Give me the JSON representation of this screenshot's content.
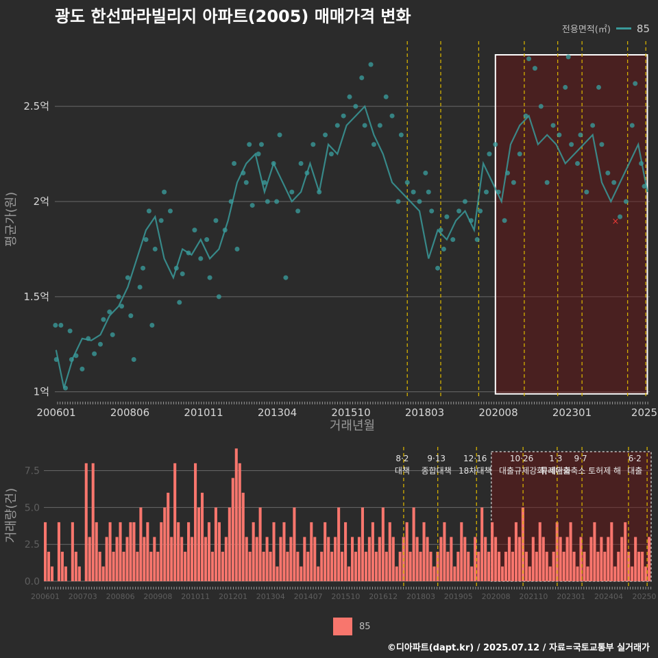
{
  "header": {
    "title": "광도 한선파라빌리지 아파트(2005) 매매가격 변화"
  },
  "legend_top": {
    "title": "전용면적(㎡)",
    "label": "85",
    "color": "#3a9a9a"
  },
  "legend_bottom": {
    "label": "85",
    "color": "#f8766d"
  },
  "footer": {
    "text": "©디아파트(dapt.kr) / 2025.07.12 / 자료=국토교통부 실거래가"
  },
  "chart_data": [
    {
      "type": "line",
      "title": "광도 한선파라빌리지 아파트(2005) 매매가격 변화",
      "xlabel": "거래년월",
      "ylabel": "평균가(원)",
      "x_tick_labels": [
        "200601",
        "200806",
        "201011",
        "201304",
        "201510",
        "201803",
        "202008",
        "202301",
        "2025"
      ],
      "y_tick_labels": [
        "1억",
        "1.5억",
        "2억",
        "2.5억"
      ],
      "y_ticks": [
        1.0,
        1.5,
        2.0,
        2.5
      ],
      "ylim": [
        0.97,
        2.85
      ],
      "xlim": [
        2006.0,
        2025.58
      ],
      "series": [
        {
          "name": "85",
          "color": "#3a9a9a",
          "x": [
            2006.04,
            2006.3,
            2006.6,
            2006.9,
            2007.2,
            2007.5,
            2007.8,
            2008.1,
            2008.4,
            2008.7,
            2009.0,
            2009.3,
            2009.6,
            2009.9,
            2010.2,
            2010.5,
            2010.8,
            2011.1,
            2011.4,
            2011.7,
            2012.0,
            2012.3,
            2012.6,
            2012.9,
            2013.2,
            2013.5,
            2013.8,
            2014.1,
            2014.4,
            2014.7,
            2015.0,
            2015.3,
            2015.6,
            2015.9,
            2016.2,
            2016.5,
            2016.8,
            2017.1,
            2017.4,
            2017.7,
            2018.0,
            2018.3,
            2018.6,
            2018.9,
            2019.2,
            2019.5,
            2019.8,
            2020.1,
            2020.4,
            2020.7,
            2021.0,
            2021.3,
            2021.6,
            2021.9,
            2022.2,
            2022.5,
            2022.8,
            2023.1,
            2023.4,
            2023.7,
            2024.0,
            2024.3,
            2024.6,
            2024.9,
            2025.2,
            2025.5
          ],
          "values": [
            1.22,
            1.02,
            1.18,
            1.28,
            1.27,
            1.3,
            1.4,
            1.45,
            1.55,
            1.7,
            1.85,
            1.92,
            1.7,
            1.6,
            1.75,
            1.72,
            1.8,
            1.7,
            1.75,
            1.9,
            2.1,
            2.2,
            2.25,
            2.05,
            2.2,
            2.1,
            2.0,
            2.05,
            2.2,
            2.05,
            2.3,
            2.25,
            2.4,
            2.45,
            2.5,
            2.35,
            2.25,
            2.1,
            2.05,
            2.0,
            1.95,
            1.7,
            1.85,
            1.8,
            1.9,
            1.95,
            1.85,
            2.2,
            2.1,
            2.0,
            2.3,
            2.4,
            2.45,
            2.3,
            2.35,
            2.3,
            2.2,
            2.25,
            2.3,
            2.35,
            2.1,
            2.0,
            2.1,
            2.2,
            2.3,
            2.05
          ]
        }
      ],
      "scatter_points": [
        [
          2006.02,
          1.35
        ],
        [
          2006.05,
          1.17
        ],
        [
          2006.2,
          1.35
        ],
        [
          2006.35,
          1.02
        ],
        [
          2006.5,
          1.32
        ],
        [
          2006.55,
          1.17
        ],
        [
          2006.7,
          1.19
        ],
        [
          2006.9,
          1.12
        ],
        [
          2007.1,
          1.28
        ],
        [
          2007.3,
          1.2
        ],
        [
          2007.5,
          1.25
        ],
        [
          2007.6,
          1.38
        ],
        [
          2007.8,
          1.42
        ],
        [
          2007.9,
          1.3
        ],
        [
          2008.1,
          1.5
        ],
        [
          2008.2,
          1.45
        ],
        [
          2008.4,
          1.6
        ],
        [
          2008.5,
          1.4
        ],
        [
          2008.6,
          1.17
        ],
        [
          2008.8,
          1.55
        ],
        [
          2008.9,
          1.65
        ],
        [
          2009.0,
          1.8
        ],
        [
          2009.1,
          1.95
        ],
        [
          2009.2,
          1.35
        ],
        [
          2009.3,
          1.75
        ],
        [
          2009.5,
          1.9
        ],
        [
          2009.6,
          2.05
        ],
        [
          2009.8,
          1.95
        ],
        [
          2010.0,
          1.65
        ],
        [
          2010.1,
          1.47
        ],
        [
          2010.2,
          1.62
        ],
        [
          2010.4,
          1.73
        ],
        [
          2010.6,
          1.85
        ],
        [
          2010.8,
          1.7
        ],
        [
          2011.0,
          1.8
        ],
        [
          2011.1,
          1.6
        ],
        [
          2011.3,
          1.9
        ],
        [
          2011.4,
          1.5
        ],
        [
          2011.6,
          1.85
        ],
        [
          2011.8,
          2.0
        ],
        [
          2011.9,
          2.2
        ],
        [
          2012.0,
          1.75
        ],
        [
          2012.2,
          2.15
        ],
        [
          2012.3,
          2.1
        ],
        [
          2012.4,
          2.3
        ],
        [
          2012.5,
          1.98
        ],
        [
          2012.7,
          2.25
        ],
        [
          2012.8,
          2.3
        ],
        [
          2012.9,
          2.1
        ],
        [
          2013.0,
          2.0
        ],
        [
          2013.2,
          2.2
        ],
        [
          2013.3,
          2.0
        ],
        [
          2013.4,
          2.35
        ],
        [
          2013.6,
          1.6
        ],
        [
          2013.8,
          2.05
        ],
        [
          2014.0,
          1.95
        ],
        [
          2014.1,
          2.2
        ],
        [
          2014.3,
          2.15
        ],
        [
          2014.5,
          2.3
        ],
        [
          2014.7,
          2.05
        ],
        [
          2014.9,
          2.35
        ],
        [
          2015.1,
          2.25
        ],
        [
          2015.3,
          2.4
        ],
        [
          2015.5,
          2.45
        ],
        [
          2015.7,
          2.55
        ],
        [
          2015.9,
          2.5
        ],
        [
          2016.1,
          2.65
        ],
        [
          2016.2,
          2.4
        ],
        [
          2016.4,
          2.72
        ],
        [
          2016.5,
          2.3
        ],
        [
          2016.7,
          2.4
        ],
        [
          2016.9,
          2.55
        ],
        [
          2017.1,
          2.45
        ],
        [
          2017.3,
          2.0
        ],
        [
          2017.4,
          2.35
        ],
        [
          2017.6,
          2.1
        ],
        [
          2017.8,
          2.05
        ],
        [
          2018.0,
          2.0
        ],
        [
          2018.2,
          2.15
        ],
        [
          2018.3,
          2.05
        ],
        [
          2018.4,
          1.95
        ],
        [
          2018.6,
          1.65
        ],
        [
          2018.7,
          1.85
        ],
        [
          2018.8,
          1.75
        ],
        [
          2018.9,
          1.92
        ],
        [
          2019.1,
          1.8
        ],
        [
          2019.3,
          1.95
        ],
        [
          2019.5,
          2.0
        ],
        [
          2019.7,
          1.9
        ],
        [
          2019.9,
          1.8
        ],
        [
          2020.0,
          1.95
        ],
        [
          2020.2,
          2.05
        ],
        [
          2020.3,
          2.25
        ],
        [
          2020.5,
          2.3
        ],
        [
          2020.6,
          2.05
        ],
        [
          2020.8,
          1.9
        ],
        [
          2020.9,
          2.15
        ],
        [
          2021.1,
          2.1
        ],
        [
          2021.3,
          2.25
        ],
        [
          2021.5,
          2.45
        ],
        [
          2021.6,
          2.75
        ],
        [
          2021.8,
          2.7
        ],
        [
          2022.0,
          2.5
        ],
        [
          2022.2,
          2.1
        ],
        [
          2022.4,
          2.4
        ],
        [
          2022.6,
          2.35
        ],
        [
          2022.8,
          2.6
        ],
        [
          2022.9,
          2.76
        ],
        [
          2023.0,
          2.3
        ],
        [
          2023.2,
          2.2
        ],
        [
          2023.3,
          2.35
        ],
        [
          2023.5,
          2.05
        ],
        [
          2023.7,
          2.4
        ],
        [
          2023.9,
          2.6
        ],
        [
          2024.0,
          2.3
        ],
        [
          2024.2,
          2.15
        ],
        [
          2024.4,
          2.1
        ],
        [
          2024.6,
          1.92
        ],
        [
          2024.8,
          2.0
        ],
        [
          2025.0,
          2.4
        ],
        [
          2025.1,
          2.62
        ],
        [
          2025.3,
          2.2
        ],
        [
          2025.4,
          2.08
        ]
      ],
      "marker": {
        "x": 2024.45,
        "value": 1.9,
        "label": "×",
        "color": "#e53935"
      },
      "highlight_range": [
        2020.5,
        2025.5
      ],
      "event_lines_x": [
        2017.6,
        2018.7,
        2019.95,
        2021.45,
        2022.55,
        2023.35,
        2024.85,
        2025.45
      ]
    },
    {
      "type": "bar",
      "xlabel": "",
      "ylabel": "거래량(건)",
      "x_tick_labels": [
        "200601",
        "200703",
        "200806",
        "200908",
        "201011",
        "201201",
        "201304",
        "201407",
        "201510",
        "201612",
        "201803",
        "201905",
        "202008",
        "202110",
        "202301",
        "202404",
        "20250"
      ],
      "y_tick_labels": [
        "0.0",
        "2.5",
        "5.0",
        "7.5"
      ],
      "y_ticks": [
        0,
        2.5,
        5.0,
        7.5
      ],
      "ylim": [
        0,
        9.2
      ],
      "series": [
        {
          "name": "85",
          "color": "#f8766d",
          "values": [
            4,
            2,
            1,
            0,
            4,
            2,
            1,
            0,
            4,
            2,
            1,
            0,
            8,
            3,
            8,
            4,
            2,
            1,
            3,
            4,
            2,
            3,
            4,
            2,
            3,
            4,
            4,
            2,
            5,
            3,
            4,
            2,
            3,
            2,
            4,
            5,
            6,
            3,
            8,
            4,
            3,
            2,
            4,
            3,
            8,
            5,
            6,
            3,
            4,
            2,
            5,
            4,
            2,
            3,
            5,
            7,
            9,
            8,
            6,
            3,
            2,
            4,
            3,
            5,
            2,
            3,
            2,
            4,
            1,
            3,
            4,
            2,
            3,
            5,
            2,
            1,
            3,
            2,
            4,
            3,
            1,
            2,
            4,
            3,
            2,
            3,
            5,
            2,
            4,
            1,
            3,
            2,
            3,
            5,
            2,
            3,
            4,
            2,
            3,
            5,
            2,
            4,
            3,
            1,
            2,
            3,
            4,
            2,
            5,
            3,
            2,
            4,
            3,
            2,
            1,
            2,
            3,
            4,
            2,
            3,
            1,
            2,
            4,
            3,
            2,
            1,
            3,
            2,
            5,
            3,
            2,
            4,
            3,
            2,
            1,
            2,
            3,
            2,
            4,
            3,
            5,
            2,
            1,
            3,
            2,
            4,
            3,
            2,
            1,
            2,
            4,
            3,
            2,
            3,
            4,
            2,
            1,
            3,
            2,
            1,
            3,
            4,
            2,
            3,
            2,
            3,
            4,
            1,
            2,
            3,
            4,
            2,
            1,
            3,
            2,
            2,
            1,
            3
          ]
        }
      ],
      "highlight_range": [
        2020.5,
        2025.5
      ],
      "event_lines_x": [
        2017.6,
        2018.7,
        2019.95,
        2021.45,
        2022.55,
        2023.35,
        2024.85,
        2025.45
      ],
      "annotations": [
        {
          "date": "8·2",
          "text": "대책",
          "x": 2017.6
        },
        {
          "date": "9·13",
          "text": "종합대책",
          "x": 2018.7
        },
        {
          "date": "12·16",
          "text": "18차대책",
          "x": 2019.95
        },
        {
          "date": "10·26",
          "text": "대출규제강화",
          "x": 2021.45
        },
        {
          "date": "1·3",
          "text": "규제완화",
          "x": 2022.55
        },
        {
          "date": "9·7",
          "text": "특례대출축소 토허제 해",
          "x": 2023.35
        },
        {
          "date": "6·2",
          "text": "대출",
          "x": 2025.1
        }
      ]
    }
  ]
}
